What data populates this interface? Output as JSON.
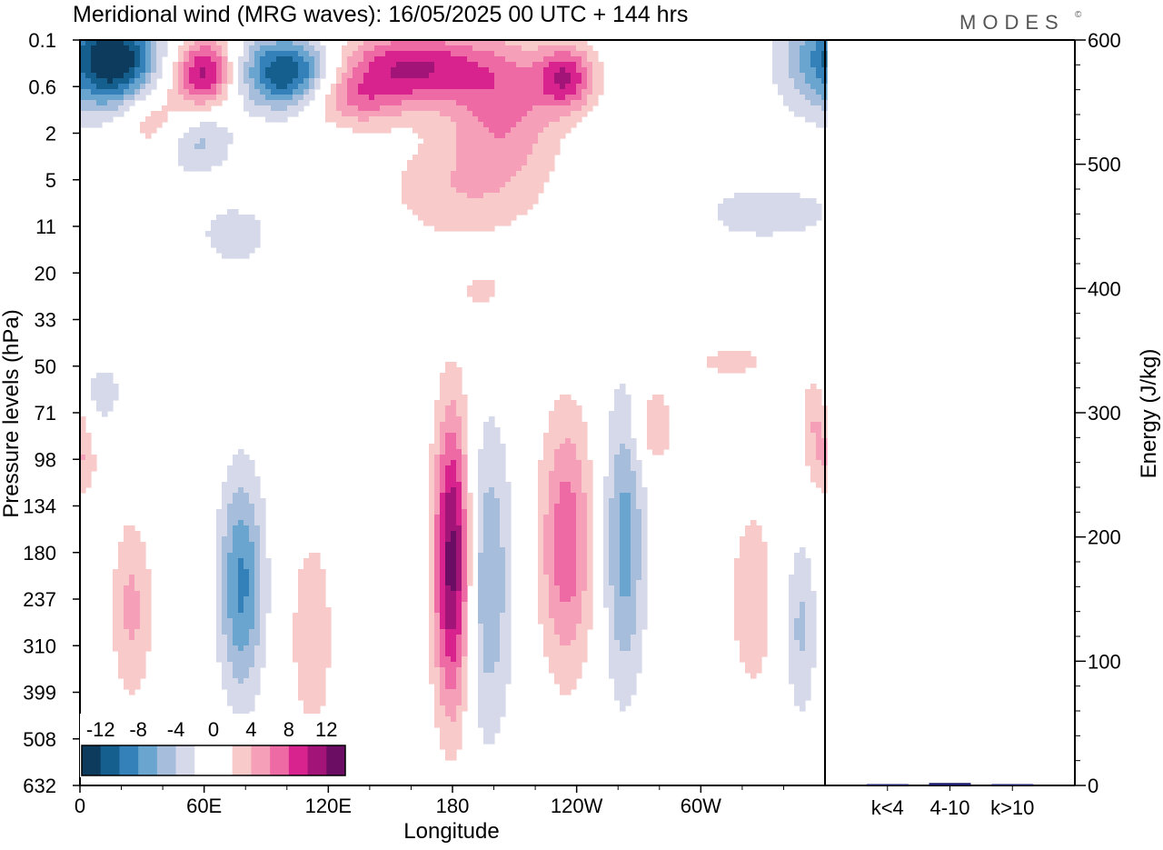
{
  "title": "Meridional wind (MRG waves):  16/05/2025  00 UTC  + 144 hrs",
  "brand": "MODES",
  "brand_mark": "©",
  "colors": {
    "levels": [
      "#0d3b5e",
      "#155f8e",
      "#3381b8",
      "#6aa5cf",
      "#a7bddc",
      "#d6d9ea",
      "#ffffff",
      "#ffffff",
      "#f9caca",
      "#f5a0b8",
      "#ed6aa5",
      "#d8238f",
      "#a31479",
      "#6b0d63"
    ],
    "frame": "#000000",
    "energy_bar": "#1a1a6b"
  },
  "chart_data": [
    {
      "type": "heatmap",
      "title": "Meridional wind (MRG waves):  16/05/2025  00 UTC  + 144 hrs",
      "xlabel": "Longitude",
      "ylabel": "Pressure levels (hPa)",
      "x_ticks": [
        "0",
        "60E",
        "120E",
        "180",
        "120W",
        "60W"
      ],
      "x_tick_degrees": [
        0,
        60,
        120,
        180,
        240,
        300
      ],
      "xlim": [
        0,
        360
      ],
      "y_ticks": [
        "0.1",
        "0.6",
        "2",
        "5",
        "11",
        "20",
        "33",
        "50",
        "71",
        "98",
        "134",
        "180",
        "237",
        "310",
        "399",
        "508",
        "632"
      ],
      "colorbar": {
        "labels": [
          "-12",
          "-8",
          "-4",
          "0",
          "4",
          "8",
          "12"
        ],
        "boundaries": [
          -14,
          -12,
          -10,
          -8,
          -6,
          -4,
          -2,
          0,
          2,
          4,
          6,
          8,
          10,
          12,
          14
        ]
      },
      "features": [
        {
          "lon": 180,
          "level": 11.2,
          "lon_halfwidth": 9,
          "level_halfwidth": 3.2,
          "value": 13.5
        },
        {
          "lon": 197,
          "level": 11.6,
          "lon_halfwidth": 12,
          "level_halfwidth": 3.4,
          "value": -6
        },
        {
          "lon": 235,
          "level": 10.8,
          "lon_halfwidth": 13,
          "level_halfwidth": 2.8,
          "value": 7.5
        },
        {
          "lon": 263,
          "level": 10.8,
          "lon_halfwidth": 10,
          "level_halfwidth": 3.2,
          "value": -7
        },
        {
          "lon": 78,
          "level": 11.7,
          "lon_halfwidth": 11,
          "level_halfwidth": 2.4,
          "value": -8.5
        },
        {
          "lon": 25,
          "level": 12.2,
          "lon_halfwidth": 10,
          "level_halfwidth": 2.0,
          "value": 4.5
        },
        {
          "lon": 112,
          "level": 12.8,
          "lon_halfwidth": 10,
          "level_halfwidth": 2.2,
          "value": 4
        },
        {
          "lon": 325,
          "level": 12.0,
          "lon_halfwidth": 14,
          "level_halfwidth": 2.6,
          "value": 3
        },
        {
          "lon": 348,
          "level": 12.6,
          "lon_halfwidth": 8,
          "level_halfwidth": 2.0,
          "value": -4.5
        },
        {
          "lon": 0,
          "level": 9.1,
          "lon_halfwidth": 9,
          "level_halfwidth": 0.8,
          "value": 3.5
        },
        {
          "lon": 277,
          "level": 8.3,
          "lon_halfwidth": 10,
          "level_halfwidth": 0.9,
          "value": 4
        },
        {
          "lon": 356,
          "level": 8.0,
          "lon_halfwidth": 8,
          "level_halfwidth": 0.9,
          "value": 4
        },
        {
          "lon": 100,
          "level": 0.7,
          "lon_halfwidth": 22,
          "level_halfwidth": 0.8,
          "value": -13
        },
        {
          "lon": 370,
          "level": 0.4,
          "lon_halfwidth": 28,
          "level_halfwidth": 1.2,
          "value": -11
        },
        {
          "lon": 160,
          "level": 0.6,
          "lon_halfwidth": 38,
          "level_halfwidth": 0.8,
          "value": 10
        },
        {
          "lon": 60,
          "level": 0.7,
          "lon_halfwidth": 14,
          "level_halfwidth": 0.8,
          "value": 11
        },
        {
          "lon": 40,
          "level": 1.7,
          "lon_halfwidth": 22,
          "level_halfwidth": 0.8,
          "value": 6
        },
        {
          "lon": 55,
          "level": 2.0,
          "lon_halfwidth": 18,
          "level_halfwidth": 0.8,
          "value": -7
        },
        {
          "lon": 205,
          "level": 1.4,
          "lon_halfwidth": 26,
          "level_halfwidth": 1.4,
          "value": 6
        },
        {
          "lon": 185,
          "level": 3.2,
          "lon_halfwidth": 40,
          "level_halfwidth": 1.2,
          "value": 3.5
        },
        {
          "lon": 235,
          "level": 0.8,
          "lon_halfwidth": 14,
          "level_halfwidth": 0.7,
          "value": 9
        },
        {
          "lon": 130,
          "level": 1.3,
          "lon_halfwidth": 24,
          "level_halfwidth": 0.6,
          "value": 5
        },
        {
          "lon": 20,
          "level": 0.5,
          "lon_halfwidth": 14,
          "level_halfwidth": 0.8,
          "value": -5
        },
        {
          "lon": 280,
          "level": 3.4,
          "lon_halfwidth": 20,
          "level_halfwidth": 0.8,
          "value": 2.8
        },
        {
          "lon": 330,
          "level": 3.7,
          "lon_halfwidth": 50,
          "level_halfwidth": 0.8,
          "value": -2.8
        },
        {
          "lon": 75,
          "level": 4.2,
          "lon_halfwidth": 20,
          "level_halfwidth": 0.8,
          "value": -3
        },
        {
          "lon": 195,
          "level": 5.4,
          "lon_halfwidth": 12,
          "level_halfwidth": 0.4,
          "value": 2.8
        },
        {
          "lon": 315,
          "level": 6.9,
          "lon_halfwidth": 24,
          "level_halfwidth": 0.4,
          "value": 2.6
        },
        {
          "lon": 10,
          "level": 7.6,
          "lon_halfwidth": 12,
          "level_halfwidth": 0.8,
          "value": -3
        }
      ]
    },
    {
      "type": "bar",
      "ylabel": "Energy (J/kg)",
      "ylim": [
        0,
        600
      ],
      "y_ticks": [
        "0",
        "100",
        "200",
        "300",
        "400",
        "500",
        "600"
      ],
      "y_tick_values": [
        0,
        100,
        200,
        300,
        400,
        500,
        600
      ],
      "categories": [
        "k<4",
        "4-10",
        "k>10"
      ],
      "values": [
        0.5,
        2,
        0.5
      ]
    }
  ]
}
